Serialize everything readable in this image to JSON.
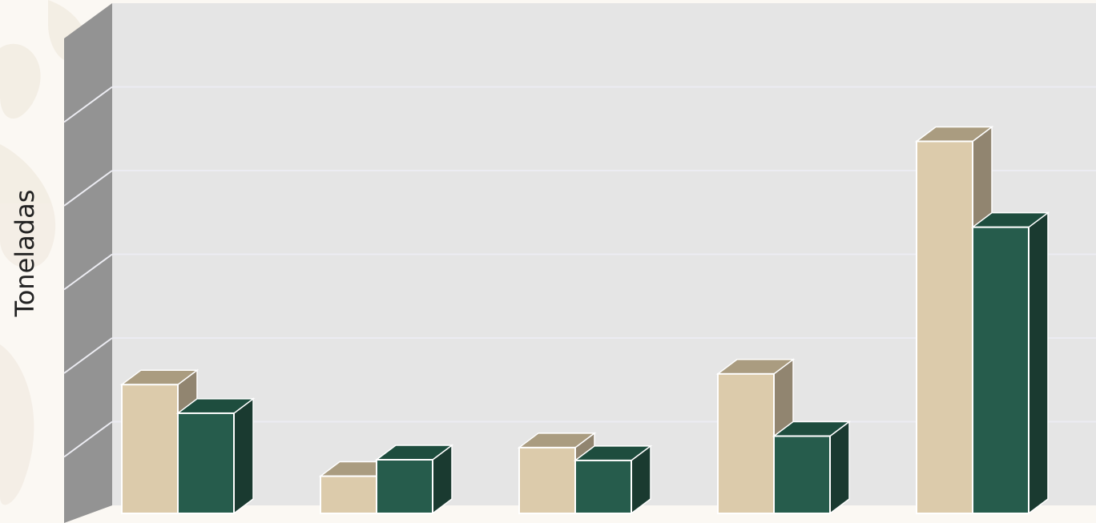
{
  "chart_data": {
    "type": "bar",
    "title": "",
    "xlabel": "",
    "ylabel": "Toneladas",
    "categories": [
      "",
      "",
      "",
      "",
      ""
    ],
    "series": [
      {
        "values": [
          1.8,
          0.52,
          0.92,
          1.95,
          5.2
        ]
      },
      {
        "values": [
          1.4,
          0.75,
          0.74,
          1.08,
          4.0
        ]
      }
    ],
    "ylim": [
      0,
      6
    ],
    "grid": true,
    "style": "3d-clustered-column"
  },
  "colors": {
    "series_1_front": "#dccbab",
    "series_1_top": "#aa9c80",
    "series_1_side": "#918570",
    "series_2_front": "#265c4c",
    "series_2_top": "#1e4d3e",
    "series_2_side": "#1a3a30",
    "back_wall": "#e5e5e5",
    "side_wall": "#939393",
    "gridline": "#ececf2",
    "edge": "#ffffff"
  }
}
